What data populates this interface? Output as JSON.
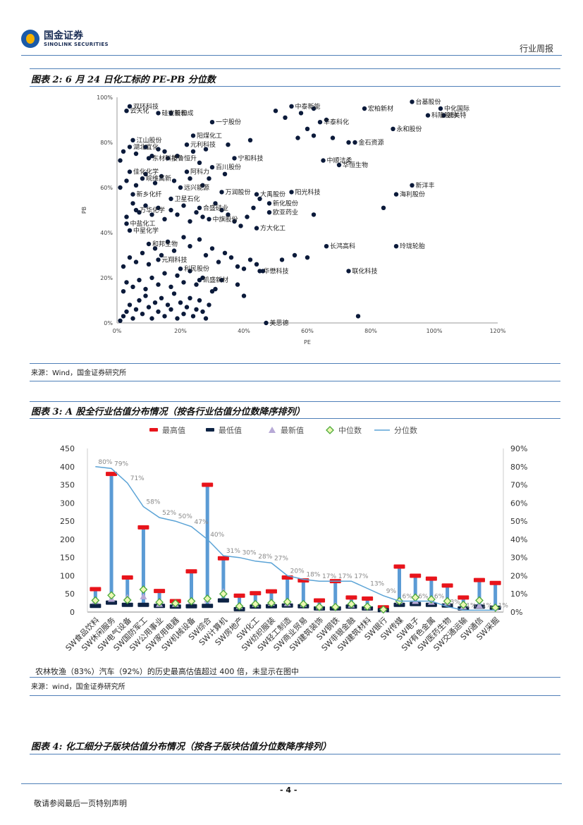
{
  "header": {
    "logo_cn": "国金证券",
    "logo_en": "SINOLINK SECURITIES",
    "report_type": "行业周报"
  },
  "fig2": {
    "title": "图表 2: 6 月 24 日化工标的 PE-PB 分位数",
    "source": "来源：Wind，国金证券研究所",
    "chart_data": {
      "type": "scatter",
      "xlabel": "PE",
      "ylabel": "PB",
      "xlim": [
        0,
        120
      ],
      "ylim": [
        0,
        100
      ],
      "x_ticks": [
        "0%",
        "20%",
        "40%",
        "60%",
        "80%",
        "100%",
        "120%"
      ],
      "y_ticks": [
        "0%",
        "20%",
        "40%",
        "60%",
        "80%",
        "100%"
      ],
      "labeled_points": [
        {
          "label": "双环科技",
          "x": 4,
          "y": 96
        },
        {
          "label": "云天化",
          "x": 3,
          "y": 94
        },
        {
          "label": "硅宝股份",
          "x": 13,
          "y": 93
        },
        {
          "label": "新和成",
          "x": 17,
          "y": 93
        },
        {
          "label": "一宁股份",
          "x": 30,
          "y": 89
        },
        {
          "label": "中泰新能",
          "x": 55,
          "y": 96
        },
        {
          "label": "宏柏新材",
          "x": 78,
          "y": 95
        },
        {
          "label": "台基股份",
          "x": 93,
          "y": 98
        },
        {
          "label": "中化国际",
          "x": 102,
          "y": 95
        },
        {
          "label": "科隆股份",
          "x": 98,
          "y": 92
        },
        {
          "label": "凯美特",
          "x": 103,
          "y": 92
        },
        {
          "label": "永和股份",
          "x": 87,
          "y": 86
        },
        {
          "label": "华泰科化",
          "x": 64,
          "y": 89
        },
        {
          "label": "金石资源",
          "x": 75,
          "y": 80
        },
        {
          "label": "阳煤化工",
          "x": 24,
          "y": 83
        },
        {
          "label": "元利科技",
          "x": 22,
          "y": 79
        },
        {
          "label": "江山股份",
          "x": 5,
          "y": 81
        },
        {
          "label": "湖北宜化",
          "x": 4,
          "y": 78
        },
        {
          "label": "东材科技",
          "x": 10,
          "y": 73
        },
        {
          "label": "华鲁恒升",
          "x": 16,
          "y": 73
        },
        {
          "label": "宁和科技",
          "x": 37,
          "y": 73
        },
        {
          "label": "百川股份",
          "x": 30,
          "y": 69
        },
        {
          "label": "中顺洁柔",
          "x": 65,
          "y": 72
        },
        {
          "label": "华恒生物",
          "x": 70,
          "y": 70
        },
        {
          "label": "阿科力",
          "x": 22,
          "y": 67
        },
        {
          "label": "佳化化学",
          "x": 4,
          "y": 67
        },
        {
          "label": "皖维高新",
          "x": 8,
          "y": 64
        },
        {
          "label": "新洋丰",
          "x": 93,
          "y": 61
        },
        {
          "label": "海利股份",
          "x": 88,
          "y": 57
        },
        {
          "label": "万润股份",
          "x": 33,
          "y": 58
        },
        {
          "label": "大禹股份",
          "x": 44,
          "y": 57
        },
        {
          "label": "阳光科技",
          "x": 55,
          "y": 58
        },
        {
          "label": "新乡化纤",
          "x": 5,
          "y": 57
        },
        {
          "label": "卫星石化",
          "x": 17,
          "y": 55
        },
        {
          "label": "远兴能源",
          "x": 20,
          "y": 60
        },
        {
          "label": "万华化学",
          "x": 6,
          "y": 50
        },
        {
          "label": "合盛硅业",
          "x": 26,
          "y": 51
        },
        {
          "label": "新化股份",
          "x": 48,
          "y": 53
        },
        {
          "label": "欧亚药业",
          "x": 48,
          "y": 49
        },
        {
          "label": "中盐化工",
          "x": 3,
          "y": 44
        },
        {
          "label": "中星化学",
          "x": 4,
          "y": 41
        },
        {
          "label": "中旗股份",
          "x": 29,
          "y": 46
        },
        {
          "label": "方大化工",
          "x": 44,
          "y": 42
        },
        {
          "label": "和邦生物",
          "x": 10,
          "y": 35
        },
        {
          "label": "长鸿高科",
          "x": 66,
          "y": 34
        },
        {
          "label": "玲珑轮胎",
          "x": 88,
          "y": 34
        },
        {
          "label": "元翔科技",
          "x": 13,
          "y": 28
        },
        {
          "label": "利民股份",
          "x": 20,
          "y": 24
        },
        {
          "label": "华懋科技",
          "x": 45,
          "y": 23
        },
        {
          "label": "联化科技",
          "x": 73,
          "y": 23
        },
        {
          "label": "凯盛新材",
          "x": 26,
          "y": 19
        },
        {
          "label": "美思德",
          "x": 47,
          "y": 0
        }
      ],
      "unlabeled_points": [
        [
          1,
          1
        ],
        [
          2,
          3
        ],
        [
          3,
          5
        ],
        [
          4,
          8
        ],
        [
          5,
          2
        ],
        [
          6,
          6
        ],
        [
          7,
          10
        ],
        [
          8,
          4
        ],
        [
          9,
          12
        ],
        [
          10,
          7
        ],
        [
          11,
          2
        ],
        [
          12,
          9
        ],
        [
          13,
          5
        ],
        [
          14,
          11
        ],
        [
          15,
          3
        ],
        [
          16,
          8
        ],
        [
          17,
          6
        ],
        [
          18,
          13
        ],
        [
          19,
          2
        ],
        [
          20,
          9
        ],
        [
          21,
          4
        ],
        [
          22,
          7
        ],
        [
          23,
          11
        ],
        [
          24,
          3
        ],
        [
          25,
          6
        ],
        [
          26,
          10
        ],
        [
          27,
          5
        ],
        [
          28,
          2
        ],
        [
          29,
          8
        ],
        [
          30,
          14
        ],
        [
          2,
          14
        ],
        [
          3,
          18
        ],
        [
          5,
          16
        ],
        [
          7,
          19
        ],
        [
          9,
          15
        ],
        [
          11,
          20
        ],
        [
          13,
          17
        ],
        [
          15,
          22
        ],
        [
          17,
          16
        ],
        [
          19,
          21
        ],
        [
          21,
          18
        ],
        [
          23,
          23
        ],
        [
          25,
          17
        ],
        [
          27,
          20
        ],
        [
          31,
          15
        ],
        [
          33,
          19
        ],
        [
          2,
          25
        ],
        [
          4,
          29
        ],
        [
          6,
          27
        ],
        [
          8,
          31
        ],
        [
          10,
          26
        ],
        [
          12,
          33
        ],
        [
          14,
          30
        ],
        [
          16,
          36
        ],
        [
          18,
          32
        ],
        [
          21,
          38
        ],
        [
          23,
          34
        ],
        [
          26,
          37
        ],
        [
          28,
          30
        ],
        [
          30,
          33
        ],
        [
          32,
          27
        ],
        [
          34,
          31
        ],
        [
          36,
          29
        ],
        [
          38,
          25
        ],
        [
          40,
          24
        ],
        [
          42,
          28
        ],
        [
          44,
          26
        ],
        [
          46,
          23
        ],
        [
          3,
          47
        ],
        [
          5,
          53
        ],
        [
          7,
          49
        ],
        [
          9,
          52
        ],
        [
          11,
          48
        ],
        [
          13,
          51
        ],
        [
          15,
          46
        ],
        [
          17,
          50
        ],
        [
          19,
          48
        ],
        [
          21,
          52
        ],
        [
          23,
          45
        ],
        [
          25,
          49
        ],
        [
          27,
          47
        ],
        [
          31,
          53
        ],
        [
          33,
          50
        ],
        [
          35,
          48
        ],
        [
          37,
          45
        ],
        [
          39,
          43
        ],
        [
          41,
          47
        ],
        [
          43,
          51
        ],
        [
          45,
          55
        ],
        [
          1,
          60
        ],
        [
          3,
          63
        ],
        [
          6,
          61
        ],
        [
          9,
          66
        ],
        [
          12,
          62
        ],
        [
          14,
          65
        ],
        [
          18,
          63
        ],
        [
          23,
          64
        ],
        [
          27,
          61
        ],
        [
          29,
          64
        ],
        [
          34,
          66
        ],
        [
          1,
          72
        ],
        [
          2,
          76
        ],
        [
          6,
          75
        ],
        [
          9,
          78
        ],
        [
          11,
          74
        ],
        [
          13,
          77
        ],
        [
          15,
          76
        ],
        [
          19,
          74
        ],
        [
          24,
          76
        ],
        [
          26,
          71
        ],
        [
          28,
          77
        ],
        [
          35,
          79
        ],
        [
          42,
          81
        ],
        [
          57,
          82
        ],
        [
          62,
          83
        ],
        [
          68,
          82
        ],
        [
          50,
          94
        ],
        [
          53,
          91
        ],
        [
          58,
          93
        ],
        [
          62,
          95
        ],
        [
          66,
          90
        ],
        [
          60,
          86
        ],
        [
          73,
          80
        ],
        [
          84,
          51
        ],
        [
          62,
          48
        ],
        [
          76,
          3
        ],
        [
          40,
          12
        ],
        [
          38,
          17
        ],
        [
          52,
          28
        ],
        [
          56,
          30
        ],
        [
          60,
          29
        ]
      ]
    }
  },
  "fig3": {
    "title": "图表 3: A 股全行业估值分布情况（按各行业估值分位数降序排列）",
    "legend": [
      "最高值",
      "最低值",
      "最新值",
      "中位数",
      "分位数"
    ],
    "note": "农林牧渔（83%）汽车（92%）的历史最高估值超过 400 倍，未显示在图中",
    "source": "来源：wind，国金证券研究所",
    "chart_data": {
      "type": "bar",
      "categories": [
        "SW食品饮料",
        "SW休闲服务",
        "SW电气设备",
        "SW国防军工",
        "SW公用事业",
        "SW家用电器",
        "SW机械设备",
        "SW综合",
        "SW计算机",
        "SW房地产",
        "SW化工",
        "SW纺织服装",
        "SW轻工制造",
        "SW商业贸易",
        "SW建筑装饰",
        "SW钢铁",
        "SW非银金融",
        "SW建筑材料",
        "SW银行",
        "SW传媒",
        "SW电子",
        "SW有色金属",
        "SW医药生物",
        "SW交通运输",
        "SW通信",
        "SW采掘"
      ],
      "y_left_ticks": [
        "0",
        "50",
        "100",
        "150",
        "200",
        "250",
        "300",
        "350",
        "400",
        "450"
      ],
      "y_right_ticks": [
        "0%",
        "10%",
        "20%",
        "30%",
        "40%",
        "50%",
        "60%",
        "70%",
        "80%",
        "90%"
      ],
      "ylim_left": [
        0,
        450
      ],
      "ylim_right": [
        0,
        90
      ],
      "series": [
        {
          "name": "最高值",
          "values": [
            63,
            380,
            95,
            233,
            58,
            30,
            112,
            350,
            148,
            45,
            52,
            57,
            95,
            87,
            32,
            85,
            40,
            37,
            13,
            125,
            100,
            92,
            73,
            40,
            88,
            80
          ]
        },
        {
          "name": "最低值",
          "values": [
            17,
            26,
            20,
            20,
            17,
            15,
            16,
            17,
            32,
            8,
            15,
            16,
            18,
            16,
            10,
            10,
            15,
            10,
            5,
            20,
            22,
            20,
            18,
            10,
            15,
            12
          ]
        },
        {
          "name": "最新值",
          "values": [
            30,
            36,
            40,
            43,
            22,
            22,
            30,
            34,
            56,
            16,
            22,
            25,
            24,
            22,
            15,
            18,
            20,
            15,
            6,
            30,
            30,
            28,
            26,
            15,
            18,
            12
          ]
        },
        {
          "name": "中位数",
          "values": [
            32,
            46,
            33,
            62,
            27,
            24,
            30,
            37,
            50,
            16,
            22,
            25,
            28,
            22,
            14,
            14,
            22,
            15,
            7,
            30,
            40,
            35,
            30,
            20,
            32,
            12
          ]
        },
        {
          "name": "分位数",
          "values": [
            80,
            79,
            71,
            58,
            52,
            50,
            47,
            40,
            31,
            30,
            28,
            27,
            20,
            18,
            17,
            17,
            17,
            13,
            9,
            6,
            6,
            6,
            3,
            1,
            1,
            1
          ]
        }
      ],
      "quantile_labels": [
        "80%",
        "79%",
        "71%",
        "58%",
        "52%",
        "50%",
        "47%",
        "40%",
        "31%",
        "30%",
        "28%",
        "27%",
        "20%",
        "18%",
        "17%",
        "17%",
        "17%",
        "13%",
        "9%",
        "6%",
        "6%",
        "6%",
        "3%",
        "1%",
        "1%",
        "1%"
      ]
    }
  },
  "fig4": {
    "title": "图表 4: 化工细分子版块估值分布情况（按各子版块估值分位数降序排列）"
  },
  "footer": {
    "page": "- 4 -",
    "disclaimer": "敬请参阅最后一页特别声明"
  }
}
